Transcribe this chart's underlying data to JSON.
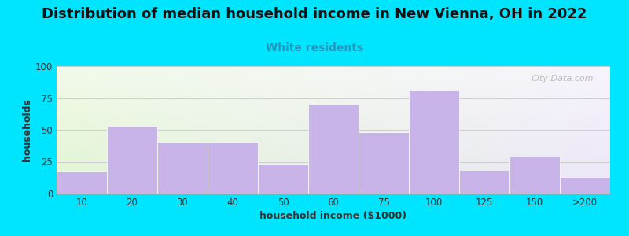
{
  "title": "Distribution of median household income in New Vienna, OH in 2022",
  "subtitle": "White residents",
  "xlabel": "household income ($1000)",
  "ylabel": "households",
  "bar_labels": [
    "10",
    "20",
    "30",
    "40",
    "50",
    "60",
    "75",
    "100",
    "125",
    "150",
    ">200"
  ],
  "bar_values": [
    17,
    53,
    40,
    40,
    23,
    70,
    48,
    81,
    18,
    29,
    13
  ],
  "bar_color": "#c8b4e8",
  "ylim": [
    0,
    100
  ],
  "yticks": [
    0,
    25,
    50,
    75,
    100
  ],
  "bg_color": "#00e5ff",
  "title_fontsize": 13,
  "subtitle_color": "#2299bb",
  "subtitle_fontsize": 10,
  "axis_label_fontsize": 9,
  "watermark": "City-Data.com",
  "title_fontweight": "bold",
  "grid_color": "#cccccc",
  "tick_color": "#555555",
  "label_color": "#333333"
}
